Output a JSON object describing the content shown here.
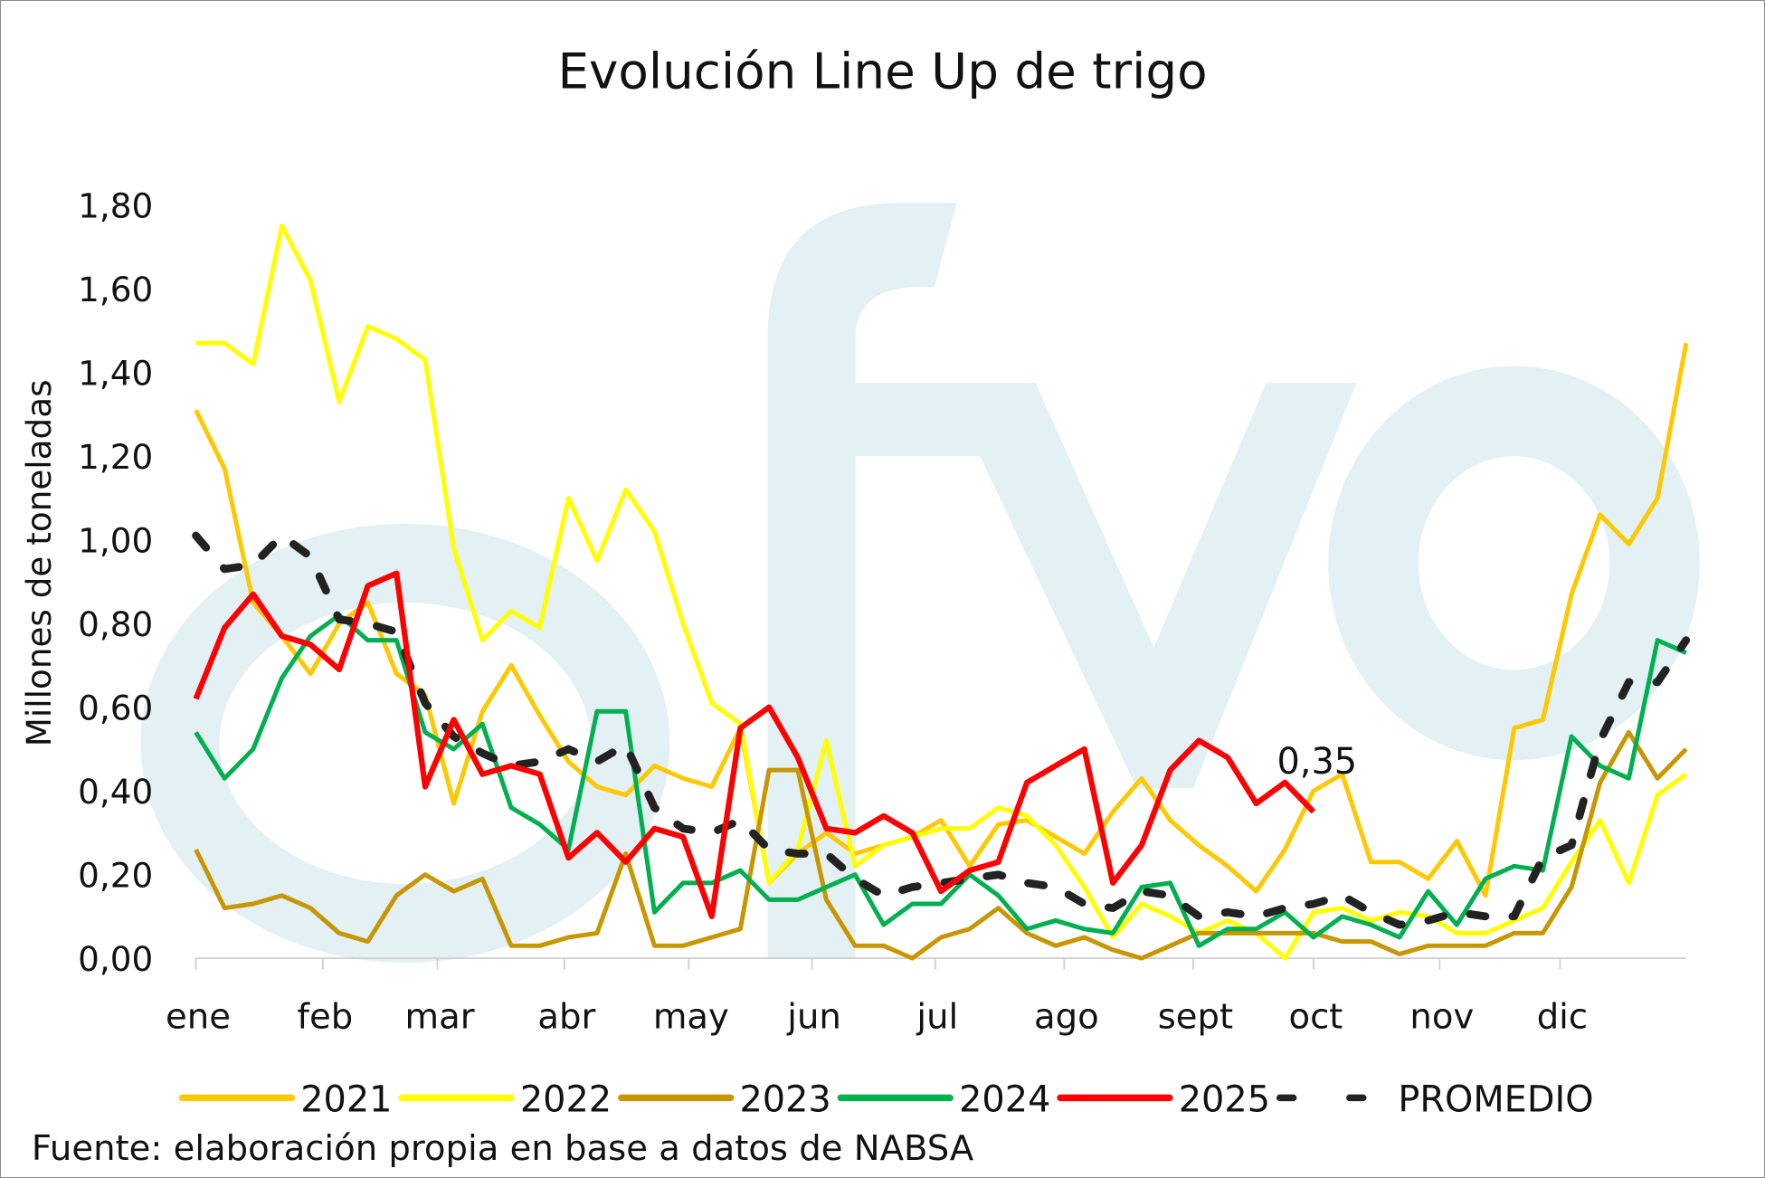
{
  "chart_data": {
    "type": "line",
    "title": "Evolución Line Up de trigo",
    "ylabel": "Millones de toneladas",
    "xlabel": "",
    "ylim": [
      0,
      1.8
    ],
    "y_ticks": [
      "0,00",
      "0,20",
      "0,40",
      "0,60",
      "0,80",
      "1,00",
      "1,20",
      "1,40",
      "1,60",
      "1,80"
    ],
    "y_tick_values": [
      0,
      0.2,
      0.4,
      0.6,
      0.8,
      1.0,
      1.2,
      1.4,
      1.6,
      1.8
    ],
    "x_unit": "week",
    "months": [
      {
        "label": "ene",
        "week": 0
      },
      {
        "label": "feb",
        "week": 4.43
      },
      {
        "label": "mar",
        "week": 8.43
      },
      {
        "label": "abr",
        "week": 12.86
      },
      {
        "label": "may",
        "week": 17.2
      },
      {
        "label": "jun",
        "week": 21.5
      },
      {
        "label": "jul",
        "week": 25.8
      },
      {
        "label": "ago",
        "week": 30.3
      },
      {
        "label": "sept",
        "week": 34.8
      },
      {
        "label": "oct",
        "week": 39.0
      },
      {
        "label": "nov",
        "week": 43.4
      },
      {
        "label": "dic",
        "week": 47.6
      }
    ],
    "grid": false,
    "legend_position": "bottom",
    "series": [
      {
        "name": "2021",
        "color": "#FFC800",
        "dashed": false,
        "values": [
          1.31,
          1.17,
          0.85,
          0.77,
          0.68,
          0.8,
          0.85,
          0.68,
          0.63,
          0.37,
          0.59,
          0.7,
          0.58,
          0.47,
          0.41,
          0.39,
          0.46,
          0.43,
          0.41,
          0.55,
          0.18,
          0.25,
          0.3,
          0.25,
          0.27,
          0.29,
          0.33,
          0.22,
          0.32,
          0.33,
          0.29,
          0.25,
          0.35,
          0.43,
          0.33,
          0.27,
          0.22,
          0.16,
          0.26,
          0.4,
          0.44,
          0.23,
          0.23,
          0.19,
          0.28,
          0.15,
          0.55,
          0.57,
          0.87,
          1.06,
          0.99,
          1.1,
          1.47
        ]
      },
      {
        "name": "2022",
        "color": "#FFFF00",
        "dashed": false,
        "values": [
          1.47,
          1.47,
          1.42,
          1.75,
          1.62,
          1.33,
          1.51,
          1.48,
          1.43,
          0.98,
          0.76,
          0.83,
          0.79,
          1.1,
          0.95,
          1.12,
          1.02,
          0.8,
          0.61,
          0.56,
          0.18,
          0.26,
          0.52,
          0.22,
          0.27,
          0.29,
          0.31,
          0.31,
          0.36,
          0.34,
          0.27,
          0.17,
          0.05,
          0.13,
          0.1,
          0.06,
          0.09,
          0.06,
          0.0,
          0.11,
          0.12,
          0.09,
          0.11,
          0.1,
          0.06,
          0.06,
          0.09,
          0.12,
          0.23,
          0.33,
          0.18,
          0.39,
          0.44
        ]
      },
      {
        "name": "2023",
        "color": "#C89600",
        "dashed": false,
        "values": [
          0.26,
          0.12,
          0.13,
          0.15,
          0.12,
          0.06,
          0.04,
          0.15,
          0.2,
          0.16,
          0.19,
          0.03,
          0.03,
          0.05,
          0.06,
          0.25,
          0.03,
          0.03,
          0.05,
          0.07,
          0.45,
          0.45,
          0.14,
          0.03,
          0.03,
          0.0,
          0.05,
          0.07,
          0.12,
          0.06,
          0.03,
          0.05,
          0.02,
          0.0,
          0.03,
          0.06,
          0.06,
          0.06,
          0.06,
          0.06,
          0.04,
          0.04,
          0.01,
          0.03,
          0.03,
          0.03,
          0.06,
          0.06,
          0.17,
          0.42,
          0.54,
          0.43,
          0.5
        ]
      },
      {
        "name": "2024",
        "color": "#00B050",
        "dashed": false,
        "values": [
          0.54,
          0.43,
          0.5,
          0.67,
          0.77,
          0.82,
          0.76,
          0.76,
          0.54,
          0.5,
          0.56,
          0.36,
          0.32,
          0.26,
          0.59,
          0.59,
          0.11,
          0.18,
          0.18,
          0.21,
          0.14,
          0.14,
          0.17,
          0.2,
          0.08,
          0.13,
          0.13,
          0.2,
          0.15,
          0.07,
          0.09,
          0.07,
          0.06,
          0.17,
          0.18,
          0.03,
          0.07,
          0.07,
          0.11,
          0.05,
          0.1,
          0.08,
          0.05,
          0.16,
          0.08,
          0.19,
          0.22,
          0.21,
          0.53,
          0.46,
          0.43,
          0.76,
          0.73
        ]
      },
      {
        "name": "2025",
        "color": "#FF0000",
        "dashed": false,
        "values": [
          0.62,
          0.79,
          0.87,
          0.77,
          0.75,
          0.69,
          0.89,
          0.92,
          0.41,
          0.57,
          0.44,
          0.46,
          0.44,
          0.24,
          0.3,
          0.23,
          0.31,
          0.29,
          0.1,
          0.55,
          0.6,
          0.48,
          0.31,
          0.3,
          0.34,
          0.3,
          0.16,
          0.21,
          0.23,
          0.42,
          0.46,
          0.5,
          0.18,
          0.27,
          0.45,
          0.52,
          0.48,
          0.37,
          0.42,
          0.35
        ]
      },
      {
        "name": "PROMEDIO",
        "color": "#222222",
        "dashed": true,
        "values": [
          1.01,
          0.93,
          0.94,
          1.01,
          0.96,
          0.81,
          0.8,
          0.78,
          0.61,
          0.53,
          0.49,
          0.46,
          0.47,
          0.5,
          0.47,
          0.51,
          0.36,
          0.31,
          0.3,
          0.33,
          0.26,
          0.25,
          0.25,
          0.19,
          0.15,
          0.17,
          0.18,
          0.19,
          0.2,
          0.18,
          0.17,
          0.13,
          0.12,
          0.16,
          0.15,
          0.1,
          0.11,
          0.1,
          0.12,
          0.13,
          0.15,
          0.11,
          0.08,
          0.09,
          0.11,
          0.1,
          0.1,
          0.24,
          0.27,
          0.52,
          0.66,
          0.66,
          0.76
        ]
      }
    ],
    "annotations": [
      {
        "text": "0,35",
        "series": "2025",
        "week": 39
      }
    ]
  },
  "watermark": "fyo",
  "source": "Fuente: elaboración propia en base a datos de NABSA"
}
